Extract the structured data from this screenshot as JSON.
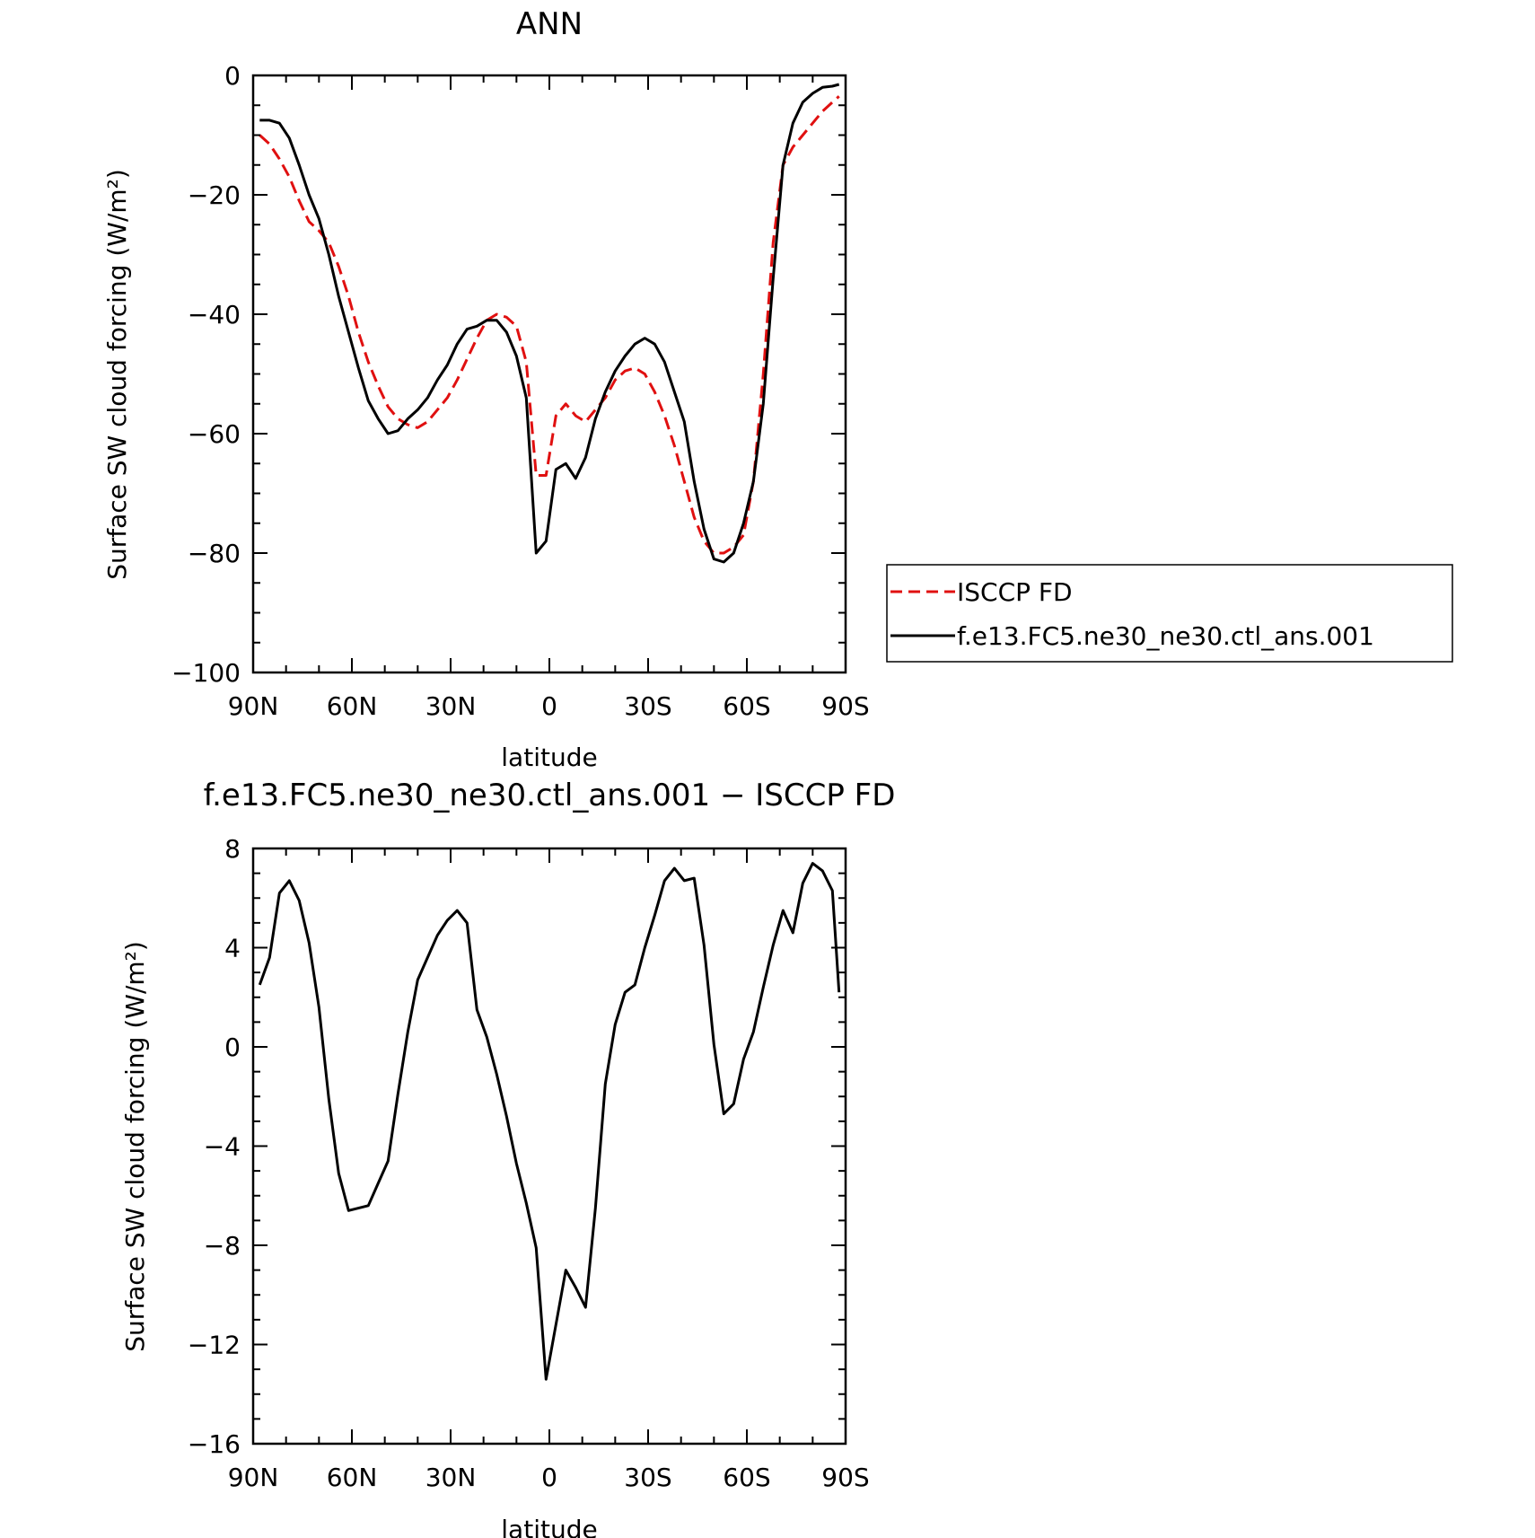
{
  "chart_data": [
    {
      "type": "line",
      "title": "ANN",
      "xlabel": "latitude",
      "ylabel": "Surface SW cloud forcing (W/m²)",
      "xlim": [
        -90,
        90
      ],
      "ylim": [
        -100,
        0
      ],
      "x_ticks": [
        -90,
        -60,
        -30,
        0,
        30,
        60,
        90
      ],
      "x_tick_labels": [
        "90N",
        "60N",
        "30N",
        "0",
        "30S",
        "60S",
        "90S"
      ],
      "y_ticks": [
        0,
        -20,
        -40,
        -60,
        -80,
        -100
      ],
      "y_tick_labels": [
        "0",
        "−20",
        "−40",
        "−60",
        "−80",
        "−100"
      ],
      "grid": false,
      "legend_position": "right",
      "series": [
        {
          "name": "ISCCP FD",
          "color": "#e01010",
          "style": "dashed",
          "x": [
            -88,
            -85,
            -82,
            -79,
            -76,
            -73,
            -70,
            -67,
            -64,
            -61,
            -58,
            -55,
            -52,
            -49,
            -46,
            -43,
            -40,
            -37,
            -34,
            -31,
            -28,
            -25,
            -22,
            -19,
            -16,
            -13,
            -10,
            -7,
            -4,
            -1,
            2,
            5,
            8,
            11,
            14,
            17,
            20,
            23,
            26,
            29,
            32,
            35,
            38,
            41,
            44,
            47,
            50,
            53,
            56,
            59,
            62,
            65,
            68,
            71,
            74,
            77,
            80,
            83,
            86,
            88
          ],
          "y": [
            -10,
            -11.5,
            -14,
            -17,
            -21,
            -24.5,
            -26,
            -28,
            -32,
            -37,
            -43,
            -48,
            -52,
            -55.5,
            -57.5,
            -58.5,
            -59,
            -58,
            -56,
            -54,
            -51,
            -47.5,
            -44,
            -41,
            -40,
            -40.5,
            -42,
            -48,
            -67,
            -67,
            -57,
            -55,
            -57,
            -58,
            -56,
            -54,
            -51,
            -49.5,
            -49,
            -50,
            -53,
            -57,
            -62,
            -68,
            -74,
            -78,
            -80,
            -80,
            -79,
            -77,
            -68,
            -50,
            -28,
            -15,
            -12,
            -10,
            -8,
            -6,
            -4.5,
            -3.5
          ]
        },
        {
          "name": "f.e13.FC5.ne30_ne30.ctl_ans.001",
          "color": "#000000",
          "style": "solid",
          "x": [
            -88,
            -85,
            -82,
            -79,
            -76,
            -73,
            -70,
            -67,
            -64,
            -61,
            -58,
            -55,
            -52,
            -49,
            -46,
            -43,
            -40,
            -37,
            -34,
            -31,
            -28,
            -25,
            -22,
            -19,
            -16,
            -13,
            -10,
            -7,
            -4,
            -1,
            2,
            5,
            8,
            11,
            14,
            17,
            20,
            23,
            26,
            29,
            32,
            35,
            38,
            41,
            44,
            47,
            50,
            53,
            56,
            59,
            62,
            65,
            68,
            71,
            74,
            77,
            80,
            83,
            86,
            88
          ],
          "y": [
            -7.5,
            -7.5,
            -8,
            -10.5,
            -15,
            -20,
            -24,
            -30,
            -37,
            -43,
            -49,
            -54.5,
            -57.5,
            -60,
            -59.5,
            -57.5,
            -56,
            -54,
            -51,
            -48.5,
            -45,
            -42.5,
            -42,
            -41,
            -41,
            -43,
            -47,
            -54,
            -80,
            -78,
            -66,
            -65,
            -67.5,
            -64,
            -57.5,
            -53,
            -49.5,
            -47,
            -45,
            -44,
            -45,
            -48,
            -53,
            -58,
            -68,
            -76,
            -81,
            -81.5,
            -80,
            -75,
            -68,
            -55,
            -34,
            -15,
            -8,
            -4.5,
            -3,
            -2,
            -1.8,
            -1.5
          ]
        }
      ]
    },
    {
      "type": "line",
      "title": "f.e13.FC5.ne30_ne30.ctl_ans.001 − ISCCP FD",
      "xlabel": "latitude",
      "ylabel": "Surface SW cloud forcing (W/m²)",
      "xlim": [
        -90,
        90
      ],
      "ylim": [
        -16,
        8
      ],
      "x_ticks": [
        -90,
        -60,
        -30,
        0,
        30,
        60,
        90
      ],
      "x_tick_labels": [
        "90N",
        "60N",
        "30N",
        "0",
        "30S",
        "60S",
        "90S"
      ],
      "y_ticks": [
        8,
        4,
        0,
        -4,
        -8,
        -12,
        -16
      ],
      "y_tick_labels": [
        "8",
        "4",
        "0",
        "−4",
        "−8",
        "−12",
        "−16"
      ],
      "grid": false,
      "series": [
        {
          "color": "#000000",
          "style": "solid",
          "x": [
            -88,
            -85,
            -82,
            -79,
            -76,
            -73,
            -70,
            -67,
            -64,
            -61,
            -58,
            -55,
            -52,
            -49,
            -46,
            -43,
            -40,
            -37,
            -34,
            -31,
            -28,
            -25,
            -22,
            -19,
            -16,
            -13,
            -10,
            -7,
            -4,
            -1,
            2,
            5,
            8,
            11,
            14,
            17,
            20,
            23,
            26,
            29,
            32,
            35,
            38,
            41,
            44,
            47,
            50,
            53,
            56,
            59,
            62,
            65,
            68,
            71,
            74,
            77,
            80,
            83,
            86,
            88
          ],
          "y": [
            2.5,
            3.6,
            6.2,
            6.7,
            5.9,
            4.2,
            1.6,
            -2.1,
            -5.1,
            -6.6,
            -6.5,
            -6.4,
            -5.5,
            -4.6,
            -1.9,
            0.6,
            2.7,
            3.6,
            4.5,
            5.1,
            5.5,
            5.0,
            1.5,
            0.4,
            -1.1,
            -2.8,
            -4.7,
            -6.3,
            -8.1,
            -13.4,
            -11.2,
            -9.0,
            -9.7,
            -10.5,
            -6.5,
            -1.5,
            0.9,
            2.2,
            2.5,
            4.0,
            5.3,
            6.7,
            7.2,
            6.7,
            6.8,
            4.1,
            0.1,
            -2.7,
            -2.3,
            -0.5,
            0.6,
            2.4,
            4.1,
            5.5,
            4.6,
            6.6,
            7.4,
            7.1,
            6.3,
            2.2
          ]
        }
      ]
    }
  ],
  "legend": {
    "entries": [
      {
        "label": "ISCCP FD",
        "color": "#e01010",
        "style": "dashed"
      },
      {
        "label": "f.e13.FC5.ne30_ne30.ctl_ans.001",
        "color": "#000000",
        "style": "solid"
      }
    ]
  }
}
